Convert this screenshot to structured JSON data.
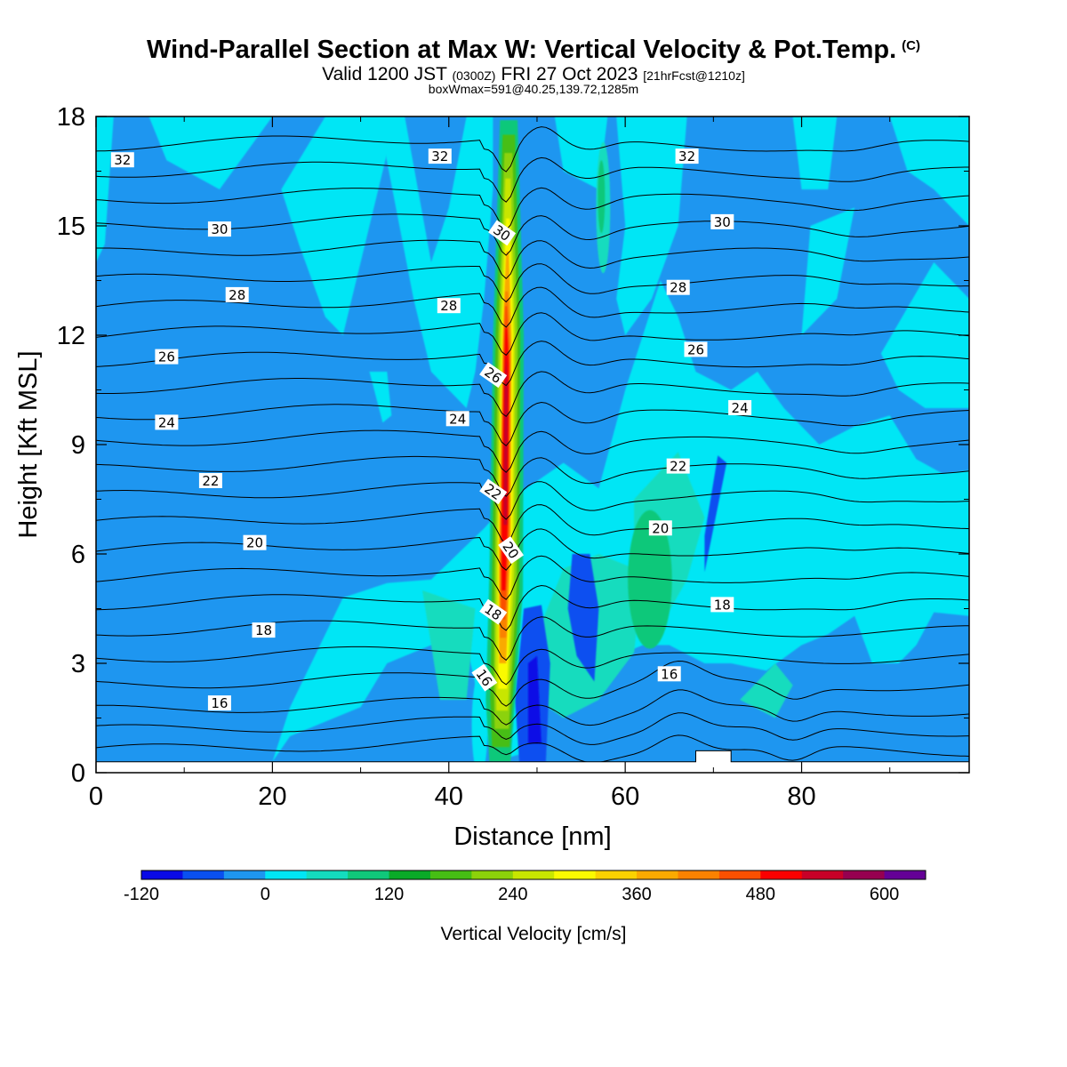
{
  "title": {
    "main": "Wind-Parallel Section at Max W: Vertical Velocity & Pot.Temp.",
    "copyright": "(C)",
    "valid_prefix": "Valid 1200 JST",
    "valid_utc": "(0300Z)",
    "valid_date": "FRI 27 Oct 2023",
    "forecast": "[21hrFcst@1210z]",
    "box_info": "boxWmax=591@40.25,139.72,1285m"
  },
  "chart_data": {
    "type": "heatmap",
    "xlabel": "Distance [nm]",
    "ylabel": "Height [Kft MSL]",
    "xlim": [
      0,
      99
    ],
    "ylim": [
      0,
      18
    ],
    "x_ticks": [
      "0",
      "20",
      "40",
      "60",
      "80"
    ],
    "y_ticks": [
      "0",
      "3",
      "6",
      "9",
      "12",
      "15",
      "18"
    ],
    "colorbar": {
      "label": "Vertical Velocity [cm/s]",
      "ticks": [
        "-120",
        "0",
        "120",
        "240",
        "360",
        "480",
        "600"
      ],
      "colors": [
        "#0a0ae6",
        "#0a50f0",
        "#1e96f0",
        "#00e6f5",
        "#14dcbe",
        "#10c87a",
        "#0aaa28",
        "#46be14",
        "#8cd20a",
        "#c8e600",
        "#fafa00",
        "#fad200",
        "#faaa00",
        "#fa8200",
        "#fa5000",
        "#fa0000",
        "#c80028",
        "#960050",
        "#640096"
      ]
    },
    "background_value_cm_s": -30,
    "updraft_core": {
      "x_nm": 46.5,
      "max_cm_s": 591,
      "height_kft": [
        0,
        17.7
      ]
    },
    "potential_temperature_contours": [
      {
        "label": "16",
        "label_x": 14,
        "label_y": 1.9
      },
      {
        "label": "18",
        "label_x": 19,
        "label_y": 3.9
      },
      {
        "label": "20",
        "label_x": 18,
        "label_y": 6.3
      },
      {
        "label": "22",
        "label_x": 13,
        "label_y": 8.0
      },
      {
        "label": "24",
        "label_x": 8,
        "label_y": 9.6
      },
      {
        "label": "26",
        "label_x": 8,
        "label_y": 11.4
      },
      {
        "label": "28",
        "label_x": 16,
        "label_y": 13.1
      },
      {
        "label": "30",
        "label_x": 14,
        "label_y": 14.9
      },
      {
        "label": "32",
        "label_x": 3,
        "label_y": 16.8
      },
      {
        "label": "16",
        "label_x": 44,
        "label_y": 2.6
      },
      {
        "label": "18",
        "label_x": 45,
        "label_y": 4.4
      },
      {
        "label": "20",
        "label_x": 47,
        "label_y": 6.1
      },
      {
        "label": "22",
        "label_x": 45,
        "label_y": 7.7
      },
      {
        "label": "24",
        "label_x": 41,
        "label_y": 9.7
      },
      {
        "label": "26",
        "label_x": 45,
        "label_y": 10.9
      },
      {
        "label": "28",
        "label_x": 40,
        "label_y": 12.8
      },
      {
        "label": "30",
        "label_x": 46,
        "label_y": 14.8
      },
      {
        "label": "32",
        "label_x": 39,
        "label_y": 16.9
      },
      {
        "label": "16",
        "label_x": 65,
        "label_y": 2.7
      },
      {
        "label": "18",
        "label_x": 71,
        "label_y": 4.6
      },
      {
        "label": "20",
        "label_x": 64,
        "label_y": 6.7
      },
      {
        "label": "22",
        "label_x": 66,
        "label_y": 8.4
      },
      {
        "label": "24",
        "label_x": 73,
        "label_y": 10.0
      },
      {
        "label": "26",
        "label_x": 68,
        "label_y": 11.6
      },
      {
        "label": "28",
        "label_x": 66,
        "label_y": 13.3
      },
      {
        "label": "30",
        "label_x": 71,
        "label_y": 15.1
      },
      {
        "label": "32",
        "label_x": 67,
        "label_y": 16.9
      }
    ]
  }
}
